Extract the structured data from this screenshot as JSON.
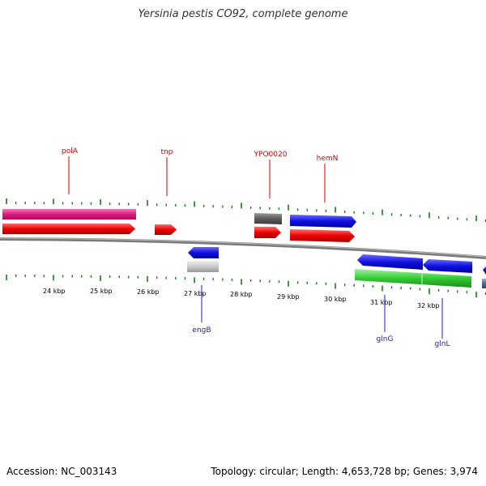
{
  "title": "Yersinia pestis CO92, complete genome",
  "footer": {
    "accession": "Accession: NC_003143",
    "summary": "Topology: circular; Length: 4,653,728 bp; Genes: 3,974"
  },
  "colors": {
    "label_forward": "#cc0000",
    "label_reverse": "#1a1acc",
    "tick": "#1a7a1a",
    "backbone": "#808080"
  },
  "kbp_labels": [
    "24 kbp",
    "25 kbp",
    "26 kbp",
    "27 kbp",
    "28 kbp",
    "29 kbp",
    "30 kbp",
    "31 kbp",
    "32 kbp"
  ],
  "gene_labels": [
    {
      "text": "polA",
      "strand": "forward"
    },
    {
      "text": "tnp",
      "strand": "forward"
    },
    {
      "text": "YPO0020",
      "strand": "forward"
    },
    {
      "text": "hemN",
      "strand": "forward"
    },
    {
      "text": "engB",
      "strand": "reverse"
    },
    {
      "text": "glnG",
      "strand": "reverse"
    },
    {
      "text": "glnL",
      "strand": "reverse"
    }
  ]
}
